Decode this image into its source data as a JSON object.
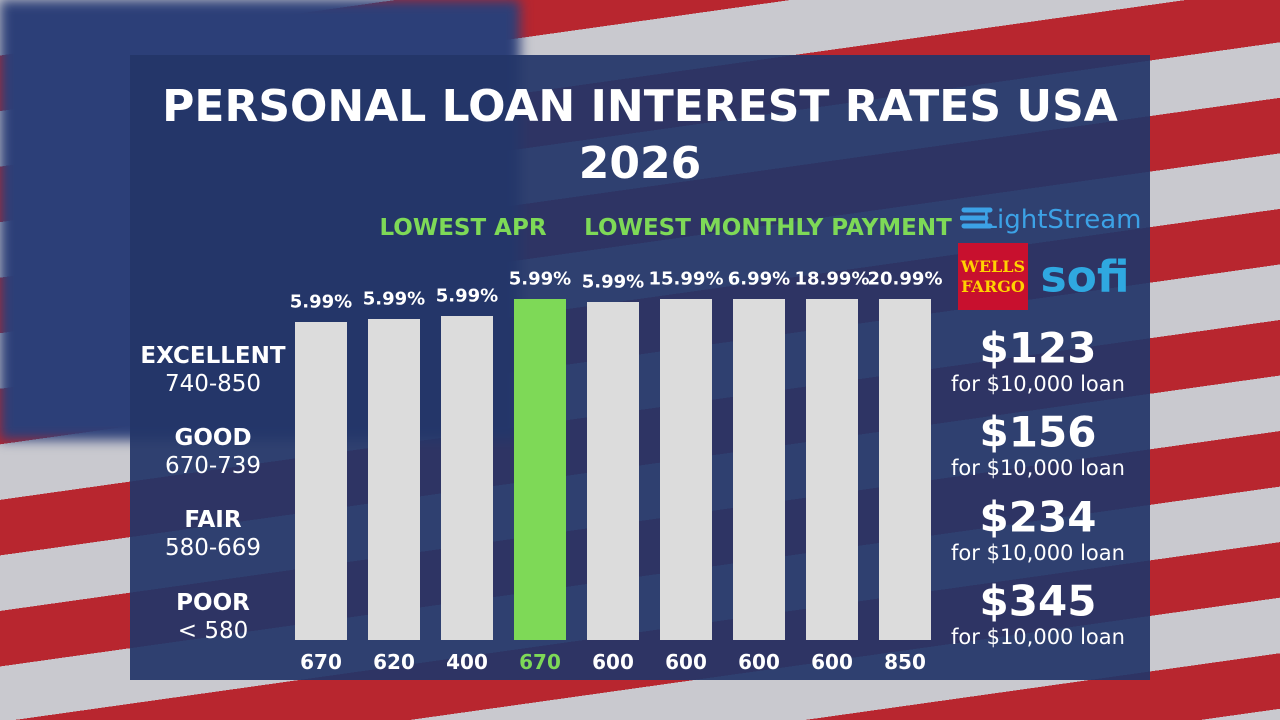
{
  "header": {
    "title": "PERSONAL LOAN INTEREST RATES USA 2026"
  },
  "highlights": [
    "LOWEST APR",
    "LOWEST MONTHLY PAYMENT"
  ],
  "logos": {
    "lightstream": "LightStream",
    "wells_fargo": "WELLS FARGO",
    "sofi": "sofi"
  },
  "tiers": [
    {
      "name": "EXCELLENT",
      "range": "740-850"
    },
    {
      "name": "GOOD",
      "range": "670-739"
    },
    {
      "name": "FAIR",
      "range": "580-669"
    },
    {
      "name": "POOR",
      "range": "< 580"
    }
  ],
  "bars": [
    {
      "rate": "5.99%",
      "score": "670",
      "color": "#dcdcdc"
    },
    {
      "rate": "5.99%",
      "score": "620",
      "color": "#dcdcdc"
    },
    {
      "rate": "5.99%",
      "score": "400",
      "color": "#dcdcdc"
    },
    {
      "rate": "5.99%",
      "score": "670",
      "color": "#7ed957"
    },
    {
      "rate": "5.99%",
      "score": "600",
      "color": "#dcdcdc"
    },
    {
      "rate": "15.99%",
      "score": "600",
      "color": "#dcdcdc"
    },
    {
      "rate": "6.99%",
      "score": "600",
      "color": "#dcdcdc"
    },
    {
      "rate": "18.99%",
      "score": "600",
      "color": "#dcdcdc"
    },
    {
      "rate": "20.99%",
      "score": "850",
      "color": "#dcdcdc"
    }
  ],
  "payments": [
    {
      "amount": "$123",
      "note": "for $10,000 loan"
    },
    {
      "amount": "$156",
      "note": "for $10,000 loan"
    },
    {
      "amount": "$234",
      "note": "for $10,000 loan"
    },
    {
      "amount": "$345",
      "note": "for $10,000 loan"
    }
  ]
}
